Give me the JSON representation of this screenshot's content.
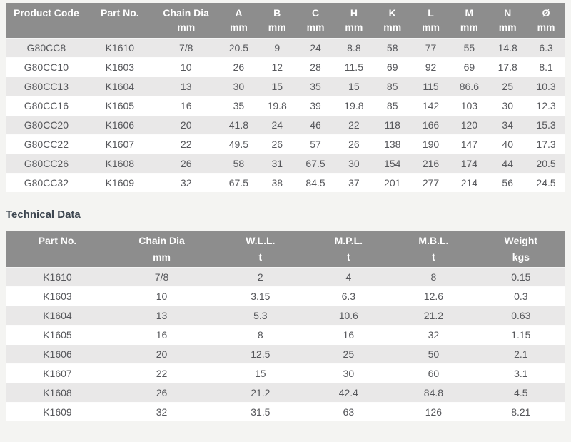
{
  "colors": {
    "header_bg": "#8d8d8d",
    "header_text": "#ffffff",
    "row_alt_bg": "#e9e8e8",
    "row_bg": "#ffffff",
    "cell_text": "#56575b",
    "heading_text": "#3d4650",
    "page_bg": "#f4f4f2"
  },
  "section_heading": "Technical Data",
  "dimensions_table": {
    "columns": [
      {
        "label": "Product Code",
        "unit": "",
        "width": "15.3%"
      },
      {
        "label": "Part No.",
        "unit": "",
        "width": "12.2%"
      },
      {
        "label": "Chain Dia",
        "unit": "mm",
        "width": "12.4%"
      },
      {
        "label": "A",
        "unit": "mm",
        "width": "6.7%"
      },
      {
        "label": "B",
        "unit": "mm",
        "width": "6.7%"
      },
      {
        "label": "C",
        "unit": "mm",
        "width": "6.7%"
      },
      {
        "label": "H",
        "unit": "mm",
        "width": "6.7%"
      },
      {
        "label": "K",
        "unit": "mm",
        "width": "6.7%"
      },
      {
        "label": "L",
        "unit": "mm",
        "width": "6.7%"
      },
      {
        "label": "M",
        "unit": "mm",
        "width": "6.7%"
      },
      {
        "label": "N",
        "unit": "mm",
        "width": "6.7%"
      },
      {
        "label": "Ø",
        "unit": "mm",
        "width": "6.7%"
      }
    ],
    "rows": [
      [
        "G80CC8",
        "K1610",
        "7/8",
        "20.5",
        "9",
        "24",
        "8.8",
        "58",
        "77",
        "55",
        "14.8",
        "6.3"
      ],
      [
        "G80CC10",
        "K1603",
        "10",
        "26",
        "12",
        "28",
        "11.5",
        "69",
        "92",
        "69",
        "17.8",
        "8.1"
      ],
      [
        "G80CC13",
        "K1604",
        "13",
        "30",
        "15",
        "35",
        "15",
        "85",
        "115",
        "86.6",
        "25",
        "10.3"
      ],
      [
        "G80CC16",
        "K1605",
        "16",
        "35",
        "19.8",
        "39",
        "19.8",
        "85",
        "142",
        "103",
        "30",
        "12.3"
      ],
      [
        "G80CC20",
        "K1606",
        "20",
        "41.8",
        "24",
        "46",
        "22",
        "118",
        "166",
        "120",
        "34",
        "15.3"
      ],
      [
        "G80CC22",
        "K1607",
        "22",
        "49.5",
        "26",
        "57",
        "26",
        "138",
        "190",
        "147",
        "40",
        "17.3"
      ],
      [
        "G80CC26",
        "K1608",
        "26",
        "58",
        "31",
        "67.5",
        "30",
        "154",
        "216",
        "174",
        "44",
        "20.5"
      ],
      [
        "G80CC32",
        "K1609",
        "32",
        "67.5",
        "38",
        "84.5",
        "37",
        "201",
        "277",
        "214",
        "56",
        "24.5"
      ]
    ]
  },
  "technical_table": {
    "columns": [
      {
        "label": "Part No.",
        "unit": "",
        "width": "18.6%"
      },
      {
        "label": "Chain Dia",
        "unit": "mm",
        "width": "18.9%"
      },
      {
        "label": "W.L.L.",
        "unit": "t",
        "width": "16.5%"
      },
      {
        "label": "M.P.L.",
        "unit": "t",
        "width": "14.9%"
      },
      {
        "label": "M.B.L.",
        "unit": "t",
        "width": "15.3%"
      },
      {
        "label": "Weight",
        "unit": "kgs",
        "width": "15.8%"
      }
    ],
    "rows": [
      [
        "K1610",
        "7/8",
        "2",
        "4",
        "8",
        "0.15"
      ],
      [
        "K1603",
        "10",
        "3.15",
        "6.3",
        "12.6",
        "0.3"
      ],
      [
        "K1604",
        "13",
        "5.3",
        "10.6",
        "21.2",
        "0.63"
      ],
      [
        "K1605",
        "16",
        "8",
        "16",
        "32",
        "1.15"
      ],
      [
        "K1606",
        "20",
        "12.5",
        "25",
        "50",
        "2.1"
      ],
      [
        "K1607",
        "22",
        "15",
        "30",
        "60",
        "3.1"
      ],
      [
        "K1608",
        "26",
        "21.2",
        "42.4",
        "84.8",
        "4.5"
      ],
      [
        "K1609",
        "32",
        "31.5",
        "63",
        "126",
        "8.21"
      ]
    ]
  }
}
